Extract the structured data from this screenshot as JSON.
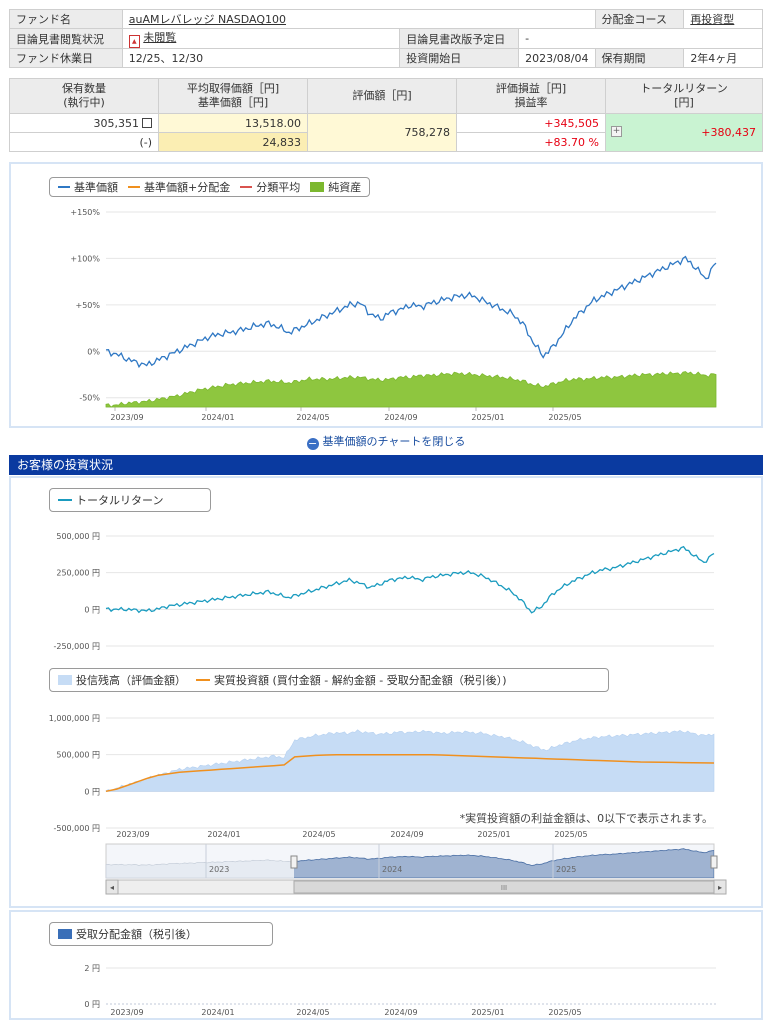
{
  "info": {
    "fund_name_label": "ファンド名",
    "fund_name": "auAMレバレッジ NASDAQ100",
    "course_label": "分配金コース",
    "course": "再投資型",
    "prospectus_status_label": "目論見書閲覧状況",
    "prospectus_status": "未閲覧",
    "prospectus_revision_label": "目論見書改版予定日",
    "prospectus_revision": "-",
    "holiday_label": "ファンド休業日",
    "holiday": "12/25、12/30",
    "start_date_label": "投資開始日",
    "start_date": "2023/08/04",
    "period_label": "保有期間",
    "period": "2年4ヶ月"
  },
  "holding": {
    "h_qty_1": "保有数量",
    "h_qty_2": "(執行中)",
    "h_avg_1": "平均取得価額［円]",
    "h_avg_2": "基準価額［円]",
    "h_value": "評価額［円]",
    "h_pl_1": "評価損益［円]",
    "h_pl_2": "損益率",
    "h_tr_1": "トータルリターン",
    "h_tr_2": "[円]",
    "qty": "305,351",
    "qty_pending": "(-)",
    "avg_cost": "13,518.00",
    "nav": "24,833",
    "value": "758,278",
    "pl": "+345,505",
    "pl_rate": "+83.70 %",
    "total_return": "+380,437"
  },
  "chart1": {
    "legend": [
      "基準価額",
      "基準価額+分配金",
      "分類平均",
      "純資産"
    ],
    "colors": {
      "nav": "#2f78c4",
      "nav_div": "#f0901e",
      "avg": "#d9534f",
      "assets": "#7cb82f"
    },
    "y_ticks": [
      "+150%",
      "+100%",
      "+50%",
      "0%",
      "-50%"
    ],
    "x_ticks": [
      "2023/09",
      "2024/01",
      "2024/05",
      "2024/09",
      "2025/01",
      "2025/05"
    ]
  },
  "toggle_label": "基準価額のチャートを閉じる",
  "section_title": "お客様の投資状況",
  "chart2": {
    "legend": [
      "トータルリターン"
    ],
    "color": "#1a9bbf",
    "y_ticks": [
      "500,000 円",
      "250,000 円",
      "0 円",
      "-250,000 円"
    ]
  },
  "chart3": {
    "legend": [
      "投信残高（評価金額）",
      "実質投資額 (買付金額 - 解約金額 - 受取分配金額（税引後）)"
    ],
    "colors": {
      "balance": "#c6dcf5",
      "invest": "#f0901e"
    },
    "y_ticks": [
      "1,000,000 円",
      "500,000 円",
      "0 円",
      "-500,000 円"
    ],
    "x_ticks": [
      "2023/09",
      "2024/01",
      "2024/05",
      "2024/09",
      "2025/01",
      "2025/05"
    ],
    "note": "*実質投資額の利益金額は、0以下で表示されます。"
  },
  "navigator": {
    "labels": [
      "2023",
      "2024",
      "2025"
    ],
    "scroll_thumb": "III"
  },
  "chart4": {
    "legend": [
      "受取分配金額（税引後）"
    ],
    "color": "#3a6fb8",
    "y_ticks": [
      "2 円",
      "0 円"
    ],
    "x_ticks": [
      "2023/09",
      "2024/01",
      "2024/05",
      "2024/09",
      "2025/01",
      "2025/05"
    ]
  },
  "chart_data": [
    {
      "type": "line",
      "title": "",
      "series": [
        {
          "name": "基準価額",
          "unit": "%",
          "values": [
            0,
            -3,
            -8,
            -12,
            -15,
            -10,
            -5,
            0,
            5,
            10,
            15,
            18,
            20,
            22,
            25,
            28,
            30,
            26,
            20,
            25,
            30,
            35,
            40,
            45,
            50,
            52,
            40,
            35,
            42,
            45,
            50,
            48,
            52,
            55,
            58,
            60,
            60,
            55,
            50,
            45,
            40,
            30,
            10,
            -5,
            5,
            20,
            35,
            45,
            55,
            60,
            65,
            70,
            75,
            80,
            85,
            90,
            95,
            100,
            90,
            78,
            95
          ]
        },
        {
          "name": "純資産",
          "unit": "%",
          "values": [
            -58,
            -58,
            -56,
            -55,
            -54,
            -52,
            -50,
            -48,
            -45,
            -42,
            -40,
            -38,
            -36,
            -35,
            -34,
            -33,
            -32,
            -33,
            -34,
            -32,
            -30,
            -30,
            -30,
            -29,
            -28,
            -28,
            -30,
            -31,
            -30,
            -28,
            -28,
            -26,
            -26,
            -25,
            -24,
            -24,
            -25,
            -26,
            -27,
            -28,
            -30,
            -32,
            -36,
            -38,
            -35,
            -32,
            -30,
            -30,
            -29,
            -28,
            -28,
            -27,
            -26,
            -25,
            -25,
            -24,
            -24,
            -23,
            -24,
            -26,
            -25
          ]
        }
      ],
      "ylim": [
        -60,
        150
      ]
    },
    {
      "type": "line",
      "series": [
        {
          "name": "トータルリターン",
          "unit": "円",
          "values": [
            0,
            0,
            0,
            -5000,
            -10000,
            0,
            20000,
            30000,
            40000,
            50000,
            60000,
            70000,
            80000,
            90000,
            100000,
            110000,
            120000,
            100000,
            80000,
            100000,
            120000,
            140000,
            160000,
            180000,
            200000,
            180000,
            150000,
            170000,
            200000,
            210000,
            220000,
            200000,
            220000,
            230000,
            240000,
            250000,
            250000,
            230000,
            200000,
            160000,
            120000,
            60000,
            -20000,
            20000,
            100000,
            150000,
            190000,
            220000,
            250000,
            270000,
            280000,
            300000,
            320000,
            340000,
            360000,
            380000,
            400000,
            420000,
            370000,
            320000,
            380000
          ]
        }
      ],
      "ylim": [
        -250000,
        500000
      ]
    },
    {
      "type": "area",
      "series": [
        {
          "name": "投信残高（評価金額）",
          "unit": "円",
          "values": [
            0,
            40000,
            90000,
            130000,
            180000,
            220000,
            260000,
            300000,
            320000,
            340000,
            360000,
            380000,
            400000,
            420000,
            440000,
            460000,
            480000,
            460000,
            700000,
            730000,
            760000,
            780000,
            800000,
            790000,
            820000,
            800000,
            780000,
            790000,
            810000,
            800000,
            820000,
            810000,
            790000,
            800000,
            810000,
            800000,
            790000,
            760000,
            740000,
            700000,
            660000,
            600000,
            560000,
            620000,
            660000,
            700000,
            720000,
            740000,
            750000,
            760000,
            770000,
            780000,
            790000,
            800000,
            810000,
            820000,
            790000,
            760000,
            780000
          ]
        },
        {
          "name": "実質投資額",
          "unit": "円",
          "values": [
            0,
            30000,
            80000,
            130000,
            180000,
            220000,
            240000,
            260000,
            270000,
            280000,
            290000,
            300000,
            310000,
            320000,
            330000,
            340000,
            350000,
            360000,
            470000,
            480000,
            490000,
            495000,
            500000,
            500000,
            500000,
            500000,
            500000,
            500000,
            500000,
            500000,
            500000,
            500000,
            495000,
            490000,
            485000,
            480000,
            475000,
            470000,
            465000,
            460000,
            455000,
            450000,
            445000,
            440000,
            435000,
            430000,
            425000,
            420000,
            415000,
            410000,
            405000,
            400000,
            398000,
            396000,
            394000,
            392000,
            390000,
            388000,
            386000
          ]
        }
      ],
      "ylim": [
        -500000,
        1000000
      ]
    },
    {
      "type": "bar",
      "series": [
        {
          "name": "受取分配金額（税引後）",
          "unit": "円",
          "values": []
        }
      ],
      "ylim": [
        0,
        2
      ]
    }
  ]
}
